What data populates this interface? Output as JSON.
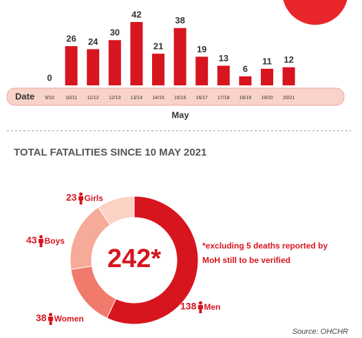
{
  "chart_data": [
    {
      "type": "bar",
      "date_label": "Date",
      "x_label": "May",
      "categories": [
        "9/10",
        "10/11",
        "11/12",
        "12/13",
        "13/14",
        "14/15",
        "15/16",
        "16/17",
        "17/18",
        "18/19",
        "19/20",
        "20/21"
      ],
      "values": [
        0,
        26,
        24,
        30,
        42,
        21,
        38,
        19,
        13,
        6,
        11,
        12
      ],
      "color": "#d7151f"
    },
    {
      "type": "donut",
      "title": "TOTAL FATALITIES SINCE 10 MAY 2021",
      "center_label": "242*",
      "note": [
        "*excluding 5 deaths reported by",
        "MoH still to be verified"
      ],
      "source": "Source: OHCHR",
      "categories": [
        "Men",
        "Women",
        "Boys",
        "Girls"
      ],
      "values": [
        138,
        38,
        43,
        23
      ],
      "colors": [
        "#d7151f",
        "#f07a6c",
        "#f6ab99",
        "#fbd2c4"
      ]
    }
  ]
}
